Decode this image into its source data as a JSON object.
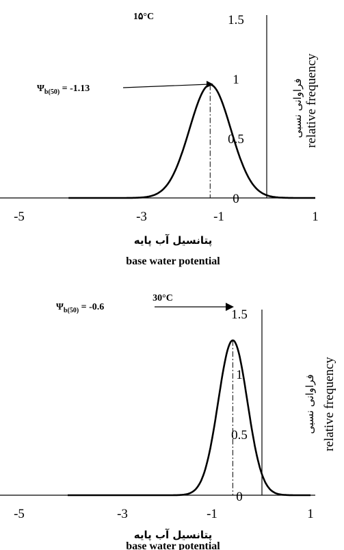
{
  "chart_data": [
    {
      "type": "line",
      "title": "1۵°C",
      "xlabel_fa": "پتانسیل آب پایه",
      "xlabel": "base water potential",
      "ylabel_fa": "فراوانی نسبی",
      "ylabel": "relative frequency",
      "xlim": [
        -5,
        1
      ],
      "ylim": [
        0,
        1.5
      ],
      "x_ticks": [
        "-5",
        "-3",
        "-1",
        "1"
      ],
      "y_ticks": [
        "0",
        "0.5",
        "1",
        "1.5"
      ],
      "grid": false,
      "series": [
        {
          "mean": -1.13,
          "sd": 0.42,
          "peak": 0.95,
          "x_range": [
            -4.0,
            1.0
          ]
        }
      ],
      "annotation": {
        "symbol": "Ψ",
        "subscript": "b(50)",
        "value_text": " = -1.13",
        "x": -1.13
      }
    },
    {
      "type": "line",
      "title": "30°C",
      "xlabel_fa": "پتانسیل آب پایه",
      "xlabel": "base water potential",
      "ylabel_fa": "فراوانی نسبی",
      "ylabel": "relative frequency",
      "xlim": [
        -5,
        1
      ],
      "ylim": [
        0,
        1.5
      ],
      "x_ticks": [
        "-5",
        "-3",
        "-1",
        "1"
      ],
      "y_ticks": [
        "0",
        "0.5",
        "1",
        "1.5"
      ],
      "grid": false,
      "series": [
        {
          "mean": -0.6,
          "sd": 0.3,
          "peak": 1.28,
          "x_range": [
            -4.0,
            1.0
          ]
        }
      ],
      "annotation": {
        "symbol": "Ψ",
        "subscript": "b(50)",
        "value_text": " = -0.6",
        "x": -0.6
      }
    }
  ]
}
